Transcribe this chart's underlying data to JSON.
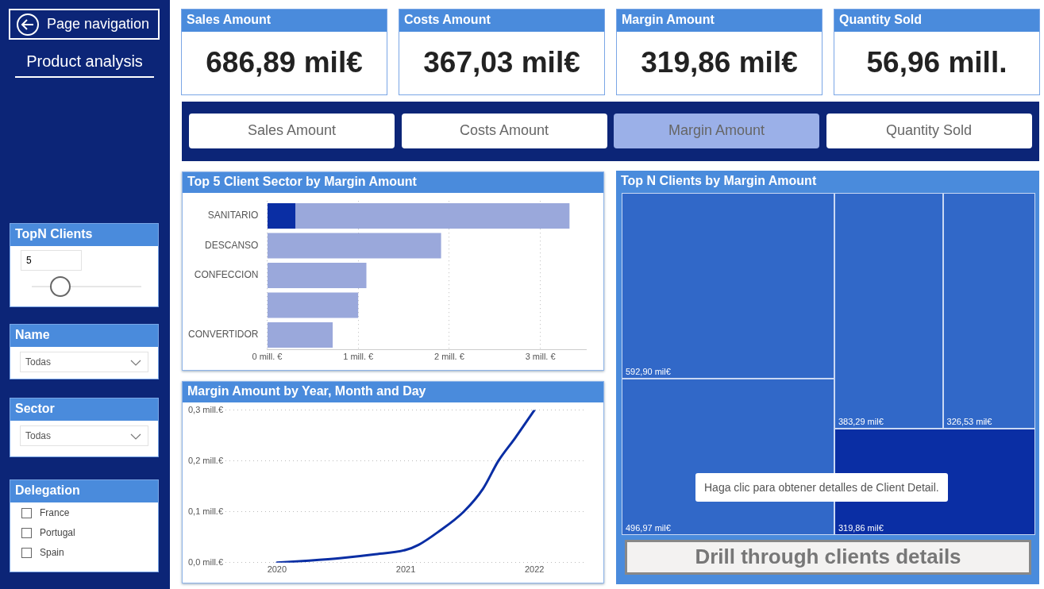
{
  "chart_data": [
    {
      "type": "other",
      "title": "Product analysis",
      "annotations": [
        "Page navigation",
        "TopN Clients",
        "5",
        "Name",
        "Todas",
        "Sector",
        "Todas",
        "Delegation",
        "France",
        "Portugal",
        "Spain"
      ]
    },
    {
      "type": "other",
      "categories": [
        "Sales Amount",
        "Costs Amount",
        "Margin Amount",
        "Quantity Sold"
      ],
      "annotations": [
        "686,89 mil€",
        "367,03 mil€",
        "319,86 mil€",
        "56,96 mill."
      ]
    },
    {
      "type": "other",
      "annotations": [
        "Sales Amount",
        "Costs Amount",
        "Margin Amount",
        "Quantity Sold"
      ],
      "colors": [
        "#ffffff",
        "#ffffff",
        "#9bb0e8",
        "#ffffff"
      ]
    },
    {
      "type": "bar",
      "title": "Top 5 Client Sector by Margin Amount",
      "orientation": "horizontal",
      "stacked": true,
      "categories": [
        "SANITARIO",
        "DESCANSO",
        "CONFECCION",
        null,
        "CONVERTIDOR"
      ],
      "series": [
        {
          "color": "#0a2ea4",
          "values": [
            0.31,
            null,
            null,
            null,
            null
          ]
        },
        {
          "color": "#9aa8db",
          "values": [
            3.01,
            1.91,
            1.09,
            1.0,
            0.72
          ]
        }
      ],
      "xlim": [
        0,
        3.5
      ],
      "xticks": [
        {
          "value": 0,
          "label": "0 mill. €"
        },
        {
          "value": 1,
          "label": "1 mill. €"
        },
        {
          "value": 2,
          "label": "2 mill. €"
        },
        {
          "value": 3,
          "label": "3 mill. €"
        }
      ],
      "grid": "x"
    },
    {
      "type": "line",
      "title": "Margin Amount by Year, Month and Day",
      "x": [
        2020,
        2020.25,
        2020.5,
        2020.75,
        2021,
        2021.1,
        2021.25,
        2021.45,
        2021.6,
        2021.72,
        2021.85,
        2022
      ],
      "values": [
        0,
        0.004,
        0.009,
        0.016,
        0.025,
        0.035,
        0.06,
        0.1,
        0.145,
        0.2,
        0.245,
        0.3
      ],
      "color": "#0a2ea4",
      "marker": "none",
      "xlim": [
        2019.6,
        2022.4
      ],
      "xticks": [
        2020,
        2021,
        2022
      ],
      "ylim": [
        0,
        0.3
      ],
      "yticks": [
        {
          "value": 0,
          "label": "0,0 mill.€"
        },
        {
          "value": 0.1,
          "label": "0,1 mill.€"
        },
        {
          "value": 0.2,
          "label": "0,2 mill.€"
        },
        {
          "value": 0.3,
          "label": "0,3 mill.€"
        }
      ],
      "grid": "y"
    },
    {
      "type": "other",
      "title": "Top N Clients by Margin Amount",
      "value_labels": [
        "592,90 mil€",
        "496,97 mil€",
        "383,29 mil€",
        "326,53 mil€",
        "319,86 mil€"
      ],
      "colors": [
        "#3168c8",
        "#3168c8",
        "#3168c8",
        "#3168c8",
        "#0a2ea4"
      ],
      "annotations": [
        "Haga clic para obtener detalles de Client Detail.",
        "Drill through clients details"
      ]
    }
  ]
}
